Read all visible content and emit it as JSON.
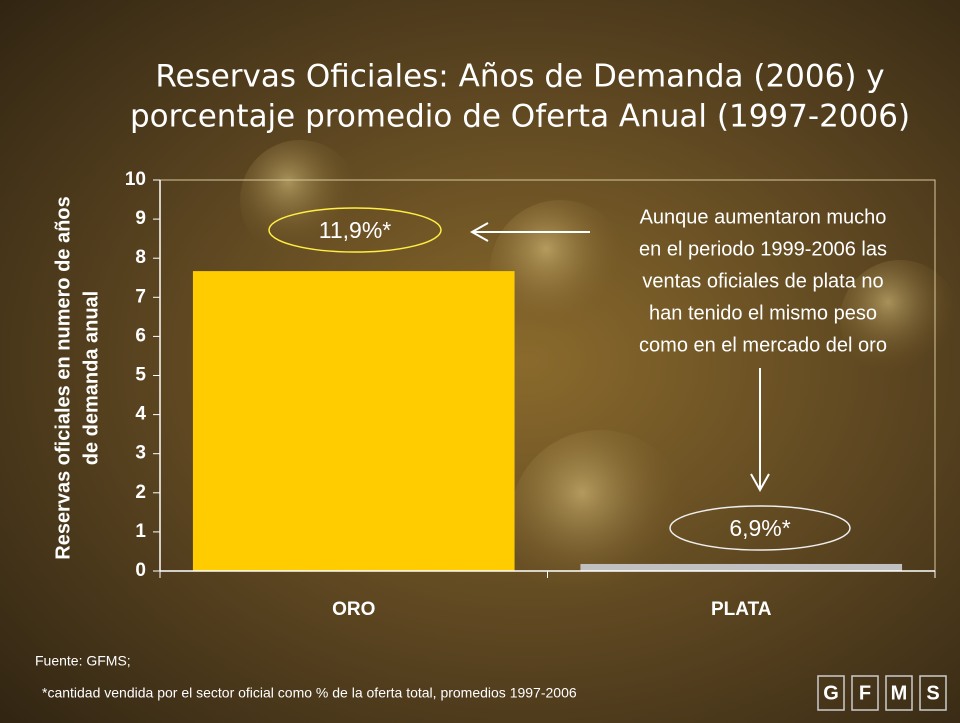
{
  "chart_data": {
    "type": "bar",
    "title_lines": [
      "Reservas Oficiales: Años de Demanda (2006) y",
      "porcentaje promedio de Oferta Anual (1997-2006)"
    ],
    "ylabel_lines": [
      "Reservas oficiales en numero de años",
      "de demanda anual"
    ],
    "categories": [
      "ORO",
      "PLATA"
    ],
    "values": [
      7.67,
      0.18
    ],
    "colors": [
      "#ffcc00",
      "#c0c0c0"
    ],
    "ylim": [
      0,
      10
    ],
    "yticks": [
      0,
      1,
      2,
      3,
      4,
      5,
      6,
      7,
      8,
      9,
      10
    ],
    "grid": false,
    "bar_annotations": [
      "11,9%*",
      "6,9%*"
    ],
    "annotation_lines": [
      "Aunque aumentaron mucho",
      "en el periodo 1999-2006 las",
      "ventas oficiales de plata no",
      "han tenido el mismo peso",
      "como en el mercado del oro"
    ],
    "source": "Fuente: GFMS;",
    "footnote": "*cantidad vendida por el sector oficial como % de la oferta total, promedios 1997-2006",
    "logo": [
      "G",
      "F",
      "M",
      "S"
    ]
  }
}
